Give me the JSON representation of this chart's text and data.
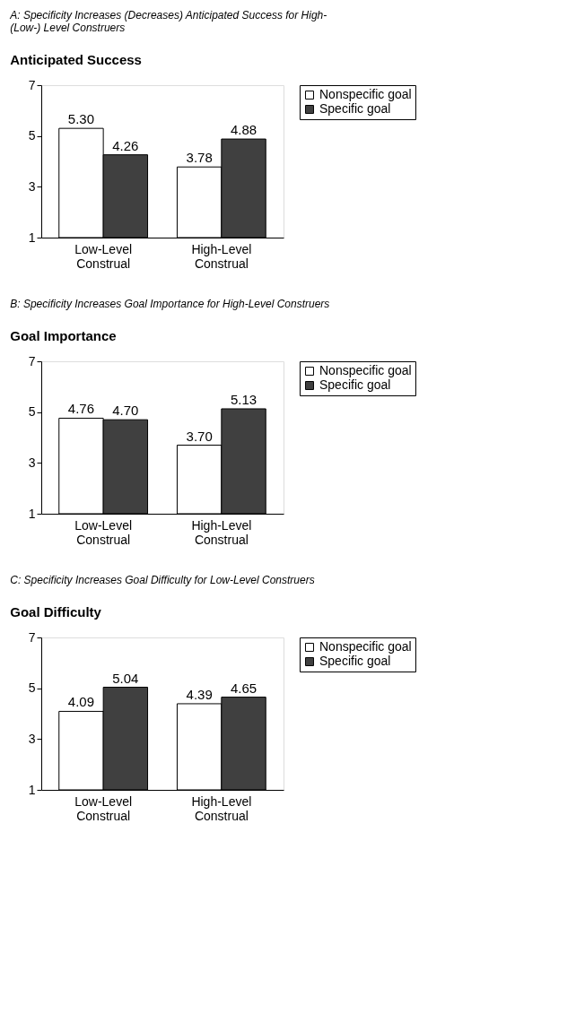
{
  "chart_data": [
    {
      "type": "bar",
      "title": "A: Specificity Increases (Decreases) Anticipated Success for High- (Low-) Level Construers",
      "subtitle": "Anticipated Success",
      "categories": [
        "Low-Level Construal",
        "High-Level Construal"
      ],
      "series": [
        {
          "name": "Nonspecific goal",
          "color": "#ffffff",
          "values": [
            5.3,
            3.78
          ]
        },
        {
          "name": "Specific goal",
          "color": "#404040",
          "values": [
            4.26,
            4.88
          ]
        }
      ],
      "value_labels": [
        [
          "5.30",
          "3.78"
        ],
        [
          "4.26",
          "4.88"
        ]
      ],
      "ylim": [
        1,
        7
      ],
      "yticks": [
        1,
        3,
        5,
        7
      ],
      "grid": false,
      "legend": "right"
    },
    {
      "type": "bar",
      "title": "B: Specificity Increases Goal Importance for High-Level Construers",
      "subtitle": "Goal Importance",
      "categories": [
        "Low-Level Construal",
        "High-Level Construal"
      ],
      "series": [
        {
          "name": "Nonspecific goal",
          "color": "#ffffff",
          "values": [
            4.76,
            3.7
          ]
        },
        {
          "name": "Specific goal",
          "color": "#404040",
          "values": [
            4.7,
            5.13
          ]
        }
      ],
      "value_labels": [
        [
          "4.76",
          "3.70"
        ],
        [
          "4.70",
          "5.13"
        ]
      ],
      "ylim": [
        1,
        7
      ],
      "yticks": [
        1,
        3,
        5,
        7
      ],
      "grid": false,
      "legend": "right"
    },
    {
      "type": "bar",
      "title": "C: Specificity Increases Goal Difficulty for Low-Level Construers",
      "subtitle": "Goal Difficulty",
      "categories": [
        "Low-Level Construal",
        "High-Level Construal"
      ],
      "series": [
        {
          "name": "Nonspecific goal",
          "color": "#ffffff",
          "values": [
            4.09,
            4.39
          ]
        },
        {
          "name": "Specific goal",
          "color": "#404040",
          "values": [
            5.04,
            4.65
          ]
        }
      ],
      "value_labels": [
        [
          "4.09",
          "4.39"
        ],
        [
          "5.04",
          "4.65"
        ]
      ],
      "ylim": [
        1,
        7
      ],
      "yticks": [
        1,
        3,
        5,
        7
      ],
      "grid": false,
      "legend": "right"
    }
  ]
}
